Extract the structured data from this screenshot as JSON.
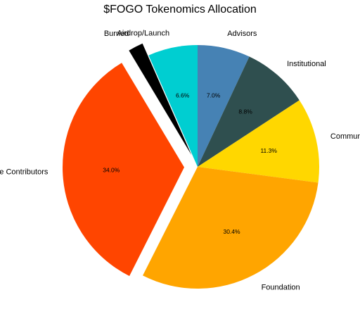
{
  "chart_data": {
    "type": "pie",
    "title": "$FOGO Tokenomics Allocation",
    "start_angle_deg": 90,
    "direction": "clockwise",
    "slices": [
      {
        "label": "Advisors",
        "value": 7.0,
        "pct_label": "7.0%",
        "color": "#4682b4",
        "explode": false
      },
      {
        "label": "Institutional",
        "value": 8.8,
        "pct_label": "8.8%",
        "color": "#2f4f4f",
        "explode": false
      },
      {
        "label": "Community",
        "value": 11.3,
        "pct_label": "11.3%",
        "color": "#ffd700",
        "explode": false
      },
      {
        "label": "Foundation",
        "value": 30.4,
        "pct_label": "30.4%",
        "color": "#ffa500",
        "explode": false
      },
      {
        "label": "Core Contributors",
        "value": 34.0,
        "pct_label": "34.0%",
        "color": "#ff4500",
        "explode": true
      },
      {
        "label": "Burned",
        "value": 2.0,
        "pct_label": "",
        "color": "#000000",
        "explode": true
      },
      {
        "label": "Airdrop/Launch",
        "value": 6.6,
        "pct_label": "6.6%",
        "color": "#00ced1",
        "explode": false
      }
    ]
  }
}
